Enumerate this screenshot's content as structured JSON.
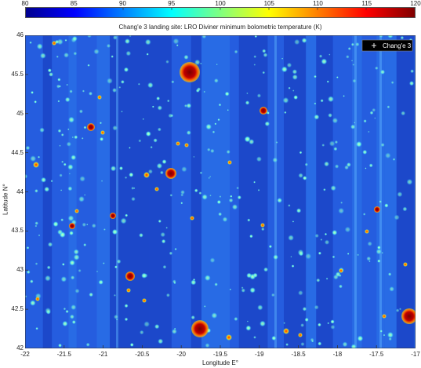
{
  "title": "Chang'e 3 landing site: LRO Diviner minimum bolometric temperature (K)",
  "colorbar": {
    "ticks": [
      "80",
      "85",
      "90",
      "95",
      "100",
      "105",
      "110",
      "115",
      "120"
    ],
    "min": 80,
    "max": 120
  },
  "axes": {
    "xlabel": "Longitude E°",
    "ylabel": "Latitude N°",
    "xticks": [
      "-22",
      "-21.5",
      "-21",
      "-20.5",
      "-20",
      "-19.5",
      "-19",
      "-18.5",
      "-18",
      "-17.5",
      "-17"
    ],
    "yticks": [
      "46",
      "45.5",
      "45",
      "44.5",
      "44",
      "43.5",
      "43",
      "42.5",
      "42"
    ],
    "xlim": [
      -22,
      -17
    ],
    "ylim": [
      42,
      46
    ]
  },
  "legend": {
    "label": "Chang'e 3",
    "placement": "top-right",
    "marker": "plus"
  },
  "colors": {
    "background_low": "#1f4fd4",
    "spot_warm": "#ff3b1f",
    "spot_hot": "#8b0000"
  }
}
